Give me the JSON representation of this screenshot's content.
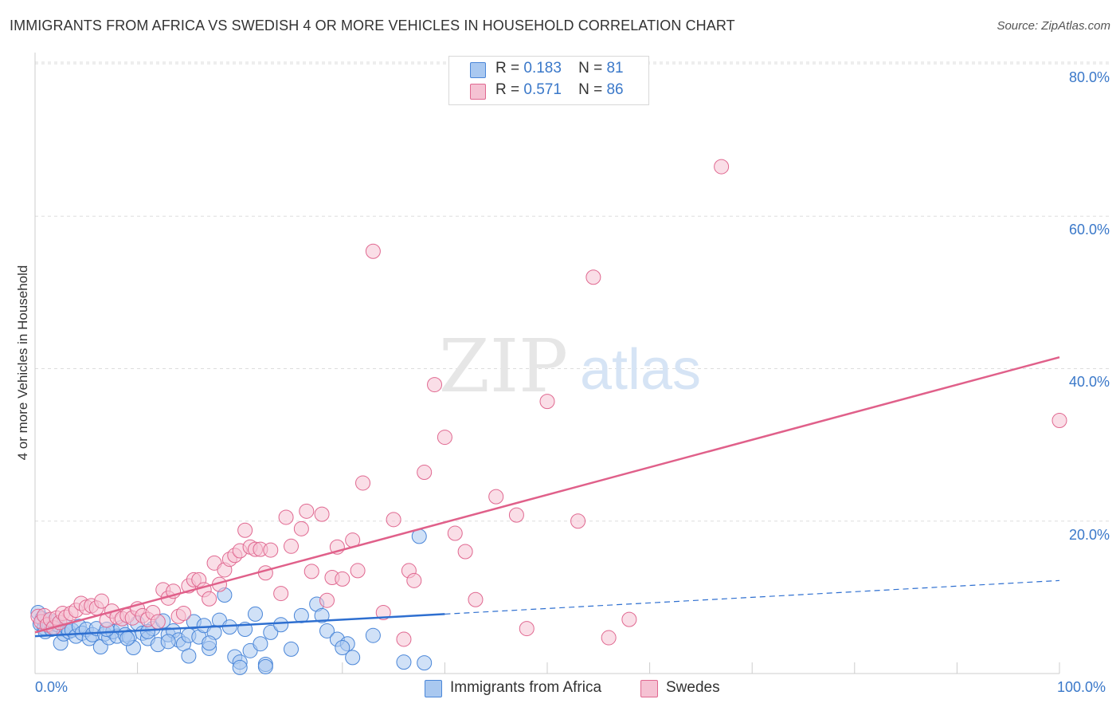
{
  "title": "IMMIGRANTS FROM AFRICA VS SWEDISH 4 OR MORE VEHICLES IN HOUSEHOLD CORRELATION CHART",
  "source": "Source: ZipAtlas.com",
  "watermark": {
    "zip": "ZIP",
    "atlas": "atlas"
  },
  "legend": {
    "series1": {
      "r_label": "R =",
      "r_value": "0.183",
      "n_label": "N =",
      "n_value": "81"
    },
    "series2": {
      "r_label": "R =",
      "r_value": "0.571",
      "n_label": "N =",
      "n_value": "86"
    }
  },
  "colors": {
    "blue": "#4a86d8",
    "blue_fill": "#a9c8f0",
    "pink": "#e06890",
    "pink_fill": "#f5b8cc",
    "tick": "#3a78c9",
    "grid": "#dddddd"
  },
  "chart_data": {
    "type": "scatter",
    "title": "IMMIGRANTS FROM AFRICA VS SWEDISH 4 OR MORE VEHICLES IN HOUSEHOLD CORRELATION CHART",
    "xlabel": "",
    "ylabel": "4 or more Vehicles in Household",
    "xlim": [
      0,
      100
    ],
    "ylim": [
      0,
      82
    ],
    "x_tick_labels": [
      "0.0%",
      "100.0%"
    ],
    "y_ticks": [
      20,
      40,
      60,
      80
    ],
    "y_tick_labels": [
      "20.0%",
      "40.0%",
      "60.0%",
      "80.0%"
    ],
    "grid": "horizontal dashed",
    "legend_placement": "top-center",
    "series": [
      {
        "name": "Immigrants from Africa",
        "color": "#4a86d8",
        "r": 0.183,
        "n": 81,
        "trend": {
          "x": [
            0,
            40
          ],
          "y": [
            4.9,
            7.8
          ],
          "extended_to": [
            100,
            12.2
          ]
        },
        "points": [
          [
            0.3,
            8.0
          ],
          [
            0.5,
            6.5
          ],
          [
            0.7,
            7.2
          ],
          [
            0.9,
            6.0
          ],
          [
            1.0,
            5.5
          ],
          [
            1.2,
            7.0
          ],
          [
            1.4,
            6.3
          ],
          [
            1.6,
            5.8
          ],
          [
            1.8,
            6.8
          ],
          [
            2.0,
            5.9
          ],
          [
            2.2,
            6.4
          ],
          [
            2.5,
            4.0
          ],
          [
            2.8,
            5.2
          ],
          [
            3.0,
            6.1
          ],
          [
            3.3,
            5.5
          ],
          [
            3.6,
            5.7
          ],
          [
            4.0,
            4.9
          ],
          [
            4.3,
            6.2
          ],
          [
            4.6,
            5.3
          ],
          [
            5.0,
            5.8
          ],
          [
            5.3,
            4.6
          ],
          [
            5.6,
            5.1
          ],
          [
            6.0,
            5.9
          ],
          [
            6.4,
            3.5
          ],
          [
            6.8,
            5.2
          ],
          [
            7.2,
            4.7
          ],
          [
            7.6,
            5.5
          ],
          [
            8.0,
            4.9
          ],
          [
            8.4,
            6.0
          ],
          [
            8.8,
            5.1
          ],
          [
            9.2,
            4.8
          ],
          [
            9.6,
            3.4
          ],
          [
            10.0,
            6.6
          ],
          [
            10.5,
            5.3
          ],
          [
            11.0,
            4.6
          ],
          [
            11.5,
            5.9
          ],
          [
            12.0,
            3.8
          ],
          [
            12.5,
            6.9
          ],
          [
            13.0,
            5.1
          ],
          [
            13.5,
            5.6
          ],
          [
            14.0,
            4.4
          ],
          [
            14.5,
            3.9
          ],
          [
            15.0,
            5.0
          ],
          [
            15.5,
            6.8
          ],
          [
            16.0,
            4.8
          ],
          [
            16.5,
            6.3
          ],
          [
            17.0,
            3.3
          ],
          [
            17.5,
            5.4
          ],
          [
            18.0,
            7.0
          ],
          [
            18.5,
            10.3
          ],
          [
            19.0,
            6.1
          ],
          [
            19.5,
            2.2
          ],
          [
            20.0,
            1.5
          ],
          [
            20.5,
            5.8
          ],
          [
            21.0,
            3.0
          ],
          [
            21.5,
            7.8
          ],
          [
            22.0,
            3.9
          ],
          [
            22.5,
            1.2
          ],
          [
            23.0,
            5.4
          ],
          [
            24.0,
            6.4
          ],
          [
            25.0,
            3.2
          ],
          [
            26.0,
            7.6
          ],
          [
            27.5,
            9.1
          ],
          [
            28.0,
            7.6
          ],
          [
            28.5,
            5.6
          ],
          [
            29.5,
            4.5
          ],
          [
            30.5,
            3.9
          ],
          [
            31.0,
            2.1
          ],
          [
            33.0,
            5.0
          ],
          [
            36.0,
            1.5
          ],
          [
            37.5,
            18.0
          ],
          [
            38.0,
            1.4
          ],
          [
            13.0,
            4.2
          ],
          [
            15.0,
            2.3
          ],
          [
            20.0,
            0.8
          ],
          [
            22.5,
            0.9
          ],
          [
            7.0,
            5.8
          ],
          [
            9.0,
            4.6
          ],
          [
            11.0,
            5.5
          ],
          [
            17.0,
            4.0
          ],
          [
            30.0,
            3.4
          ]
        ]
      },
      {
        "name": "Swedes",
        "color": "#e06890",
        "r": 0.571,
        "n": 86,
        "trend": {
          "x": [
            0,
            100
          ],
          "y": [
            5.4,
            41.5
          ]
        },
        "points": [
          [
            0.3,
            7.5
          ],
          [
            0.6,
            6.8
          ],
          [
            0.9,
            7.6
          ],
          [
            1.2,
            6.4
          ],
          [
            1.5,
            7.1
          ],
          [
            1.8,
            6.0
          ],
          [
            2.1,
            7.3
          ],
          [
            2.4,
            6.7
          ],
          [
            2.7,
            7.9
          ],
          [
            3.0,
            7.4
          ],
          [
            3.5,
            7.9
          ],
          [
            4.0,
            8.3
          ],
          [
            4.5,
            9.2
          ],
          [
            5.0,
            8.7
          ],
          [
            5.5,
            8.9
          ],
          [
            6.0,
            8.6
          ],
          [
            6.5,
            9.5
          ],
          [
            7.0,
            7.0
          ],
          [
            7.5,
            8.2
          ],
          [
            8.0,
            7.4
          ],
          [
            8.5,
            7.2
          ],
          [
            9.0,
            7.6
          ],
          [
            9.5,
            7.3
          ],
          [
            10.0,
            8.5
          ],
          [
            10.5,
            7.6
          ],
          [
            11.0,
            7.1
          ],
          [
            11.5,
            8.0
          ],
          [
            12.0,
            6.8
          ],
          [
            12.5,
            11.0
          ],
          [
            13.0,
            9.9
          ],
          [
            13.5,
            10.8
          ],
          [
            14.0,
            7.5
          ],
          [
            14.5,
            7.9
          ],
          [
            15.0,
            11.5
          ],
          [
            15.5,
            12.3
          ],
          [
            16.0,
            12.3
          ],
          [
            16.5,
            11.0
          ],
          [
            17.0,
            9.8
          ],
          [
            17.5,
            14.5
          ],
          [
            18.0,
            11.7
          ],
          [
            18.5,
            13.6
          ],
          [
            19.0,
            15.0
          ],
          [
            19.5,
            15.5
          ],
          [
            20.0,
            16.1
          ],
          [
            20.5,
            18.8
          ],
          [
            21.0,
            16.6
          ],
          [
            21.5,
            16.3
          ],
          [
            22.0,
            16.3
          ],
          [
            22.5,
            13.2
          ],
          [
            23.0,
            16.2
          ],
          [
            24.0,
            10.5
          ],
          [
            24.5,
            20.5
          ],
          [
            25.0,
            16.7
          ],
          [
            26.0,
            19.0
          ],
          [
            26.5,
            21.3
          ],
          [
            27.0,
            13.4
          ],
          [
            28.0,
            20.9
          ],
          [
            28.5,
            9.6
          ],
          [
            29.0,
            12.6
          ],
          [
            29.5,
            16.6
          ],
          [
            30.0,
            12.4
          ],
          [
            31.0,
            17.5
          ],
          [
            31.5,
            13.5
          ],
          [
            32.0,
            25.0
          ],
          [
            33.0,
            55.4
          ],
          [
            34.0,
            8.0
          ],
          [
            35.0,
            20.2
          ],
          [
            36.0,
            4.5
          ],
          [
            36.5,
            13.5
          ],
          [
            37.0,
            12.2
          ],
          [
            38.0,
            26.4
          ],
          [
            39.0,
            37.9
          ],
          [
            40.0,
            31.0
          ],
          [
            41.0,
            18.4
          ],
          [
            42.0,
            16.0
          ],
          [
            43.0,
            9.7
          ],
          [
            45.0,
            23.2
          ],
          [
            47.0,
            20.8
          ],
          [
            48.0,
            5.9
          ],
          [
            50.0,
            35.7
          ],
          [
            53.0,
            20.0
          ],
          [
            54.5,
            52.0
          ],
          [
            56.0,
            4.7
          ],
          [
            58.0,
            7.1
          ],
          [
            67.0,
            66.5
          ],
          [
            100.0,
            33.2
          ]
        ]
      }
    ]
  },
  "axis": {
    "ylabel": "4 or more Vehicles in Household",
    "x_min_label": "0.0%",
    "x_max_label": "100.0%",
    "y_ticks": [
      {
        "label": "80.0%"
      },
      {
        "label": "60.0%"
      },
      {
        "label": "40.0%"
      },
      {
        "label": "20.0%"
      }
    ]
  },
  "bottom_legend": {
    "series1": "Immigrants from Africa",
    "series2": "Swedes"
  }
}
